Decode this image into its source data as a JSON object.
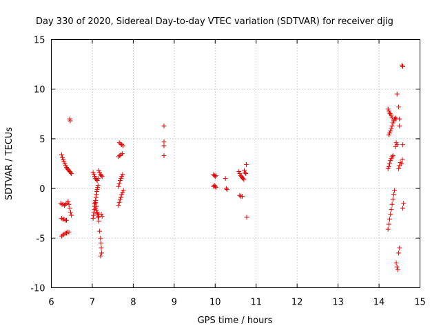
{
  "chart_data": {
    "type": "scatter",
    "title": "Day 330 of 2020, Sidereal Day-to-day VTEC variation (SDTVAR) for receiver djig",
    "xlabel": "GPS time / hours",
    "ylabel": "SDTVAR / TECUs",
    "xlim": [
      6,
      15
    ],
    "ylim": [
      -10,
      15
    ],
    "xticks": [
      "6",
      "7",
      "8",
      "9",
      "10",
      "11",
      "12",
      "13",
      "14",
      "15"
    ],
    "yticks": [
      "-10",
      "-5",
      "0",
      "5",
      "10",
      "15"
    ],
    "grid": true,
    "marker": "+",
    "color": "#e00000",
    "series": [
      {
        "name": "SDTVAR",
        "points": [
          [
            6.25,
            3.4
          ],
          [
            6.27,
            3.1
          ],
          [
            6.29,
            2.9
          ],
          [
            6.31,
            2.7
          ],
          [
            6.33,
            2.5
          ],
          [
            6.35,
            2.3
          ],
          [
            6.37,
            2.1
          ],
          [
            6.39,
            2.0
          ],
          [
            6.41,
            1.9
          ],
          [
            6.43,
            1.8
          ],
          [
            6.45,
            1.7
          ],
          [
            6.47,
            1.6
          ],
          [
            6.49,
            1.5
          ],
          [
            6.23,
            -1.5
          ],
          [
            6.26,
            -1.6
          ],
          [
            6.29,
            -1.6
          ],
          [
            6.32,
            -1.7
          ],
          [
            6.35,
            -1.6
          ],
          [
            6.38,
            -1.5
          ],
          [
            6.41,
            -1.3
          ],
          [
            6.43,
            -1.6
          ],
          [
            6.45,
            -2.0
          ],
          [
            6.47,
            -2.4
          ],
          [
            6.49,
            -2.7
          ],
          [
            6.25,
            -3.0
          ],
          [
            6.28,
            -3.1
          ],
          [
            6.31,
            -3.1
          ],
          [
            6.34,
            -3.2
          ],
          [
            6.37,
            -3.2
          ],
          [
            6.25,
            -4.8
          ],
          [
            6.28,
            -4.7
          ],
          [
            6.31,
            -4.6
          ],
          [
            6.34,
            -4.5
          ],
          [
            6.37,
            -4.5
          ],
          [
            6.4,
            -4.4
          ],
          [
            6.43,
            -4.4
          ],
          [
            6.45,
            7.0
          ],
          [
            6.46,
            6.8
          ],
          [
            7.02,
            1.6
          ],
          [
            7.04,
            1.4
          ],
          [
            7.06,
            1.2
          ],
          [
            7.08,
            1.0
          ],
          [
            7.1,
            0.9
          ],
          [
            7.12,
            0.8
          ],
          [
            7.14,
            1.0
          ],
          [
            7.02,
            -3.0
          ],
          [
            7.03,
            -2.7
          ],
          [
            7.04,
            -2.4
          ],
          [
            7.05,
            -2.1
          ],
          [
            7.06,
            -1.8
          ],
          [
            7.07,
            -1.5
          ],
          [
            7.08,
            -1.2
          ],
          [
            7.09,
            -0.9
          ],
          [
            7.1,
            -0.6
          ],
          [
            7.11,
            -0.3
          ],
          [
            7.12,
            -0.1
          ],
          [
            7.13,
            0.1
          ],
          [
            7.14,
            0.3
          ],
          [
            7.05,
            -1.5
          ],
          [
            7.08,
            -2.0
          ],
          [
            7.1,
            -2.2
          ],
          [
            7.12,
            -2.4
          ],
          [
            7.14,
            -2.6
          ],
          [
            7.16,
            -2.8
          ],
          [
            7.08,
            -1.4
          ],
          [
            7.1,
            -1.8
          ],
          [
            7.12,
            -2.5
          ],
          [
            7.14,
            -2.9
          ],
          [
            7.16,
            -3.3
          ],
          [
            7.16,
            1.8
          ],
          [
            7.18,
            1.6
          ],
          [
            7.2,
            1.4
          ],
          [
            7.22,
            1.3
          ],
          [
            7.24,
            1.2
          ],
          [
            7.18,
            -4.3
          ],
          [
            7.2,
            -5.0
          ],
          [
            7.21,
            -5.5
          ],
          [
            7.22,
            -6.0
          ],
          [
            7.23,
            -6.5
          ],
          [
            7.2,
            -6.8
          ],
          [
            7.22,
            -2.6
          ],
          [
            7.24,
            -2.8
          ],
          [
            7.66,
            4.6
          ],
          [
            7.69,
            4.5
          ],
          [
            7.72,
            4.4
          ],
          [
            7.75,
            4.3
          ],
          [
            7.64,
            3.2
          ],
          [
            7.67,
            3.3
          ],
          [
            7.7,
            3.4
          ],
          [
            7.73,
            3.5
          ],
          [
            7.64,
            0.2
          ],
          [
            7.66,
            0.5
          ],
          [
            7.68,
            0.8
          ],
          [
            7.7,
            1.0
          ],
          [
            7.72,
            1.2
          ],
          [
            7.74,
            1.4
          ],
          [
            7.64,
            -1.7
          ],
          [
            7.66,
            -1.4
          ],
          [
            7.68,
            -1.1
          ],
          [
            7.7,
            -0.9
          ],
          [
            7.72,
            -0.6
          ],
          [
            7.74,
            -0.4
          ],
          [
            7.76,
            -0.2
          ],
          [
            8.75,
            6.3
          ],
          [
            8.75,
            4.7
          ],
          [
            8.75,
            4.3
          ],
          [
            8.75,
            3.3
          ],
          [
            9.96,
            1.4
          ],
          [
            9.98,
            1.3
          ],
          [
            10.0,
            1.2
          ],
          [
            10.02,
            1.3
          ],
          [
            9.96,
            0.2
          ],
          [
            9.98,
            0.3
          ],
          [
            10.0,
            0.2
          ],
          [
            10.02,
            0.1
          ],
          [
            10.25,
            1.0
          ],
          [
            10.27,
            0.0
          ],
          [
            10.29,
            -0.1
          ],
          [
            10.58,
            1.7
          ],
          [
            10.6,
            1.5
          ],
          [
            10.62,
            1.3
          ],
          [
            10.64,
            1.2
          ],
          [
            10.66,
            1.1
          ],
          [
            10.68,
            1.0
          ],
          [
            10.7,
            0.9
          ],
          [
            10.6,
            -0.7
          ],
          [
            10.63,
            -0.8
          ],
          [
            10.66,
            -0.8
          ],
          [
            10.71,
            1.8
          ],
          [
            10.73,
            1.6
          ],
          [
            10.75,
            1.5
          ],
          [
            10.76,
            2.4
          ],
          [
            10.77,
            -2.9
          ],
          [
            14.22,
            -4.1
          ],
          [
            14.24,
            -3.6
          ],
          [
            14.26,
            -3.1
          ],
          [
            14.28,
            -2.6
          ],
          [
            14.3,
            -2.1
          ],
          [
            14.32,
            -1.6
          ],
          [
            14.34,
            -1.1
          ],
          [
            14.36,
            -0.6
          ],
          [
            14.38,
            -0.2
          ],
          [
            14.22,
            2.0
          ],
          [
            14.24,
            2.2
          ],
          [
            14.26,
            2.5
          ],
          [
            14.28,
            2.8
          ],
          [
            14.3,
            3.0
          ],
          [
            14.32,
            3.2
          ],
          [
            14.34,
            3.3
          ],
          [
            14.24,
            5.4
          ],
          [
            14.26,
            5.6
          ],
          [
            14.28,
            5.8
          ],
          [
            14.3,
            6.0
          ],
          [
            14.32,
            6.3
          ],
          [
            14.34,
            6.6
          ],
          [
            14.36,
            6.8
          ],
          [
            14.38,
            7.0
          ],
          [
            14.4,
            7.1
          ],
          [
            14.42,
            7.0
          ],
          [
            14.22,
            8.0
          ],
          [
            14.24,
            7.8
          ],
          [
            14.26,
            7.6
          ],
          [
            14.28,
            7.5
          ],
          [
            14.3,
            7.3
          ],
          [
            14.32,
            7.1
          ],
          [
            14.4,
            4.2
          ],
          [
            14.42,
            4.6
          ],
          [
            14.44,
            4.4
          ],
          [
            14.44,
            9.5
          ],
          [
            14.48,
            8.2
          ],
          [
            14.5,
            7.0
          ],
          [
            14.5,
            6.3
          ],
          [
            14.48,
            2.0
          ],
          [
            14.5,
            2.3
          ],
          [
            14.52,
            2.6
          ],
          [
            14.42,
            -7.5
          ],
          [
            14.44,
            -7.9
          ],
          [
            14.46,
            -8.2
          ],
          [
            14.48,
            -6.5
          ],
          [
            14.5,
            -6.0
          ],
          [
            14.55,
            2.5
          ],
          [
            14.57,
            2.9
          ],
          [
            14.58,
            4.4
          ],
          [
            14.56,
            12.4
          ],
          [
            14.58,
            12.3
          ],
          [
            14.58,
            -2.0
          ],
          [
            14.6,
            -1.5
          ]
        ]
      }
    ]
  }
}
